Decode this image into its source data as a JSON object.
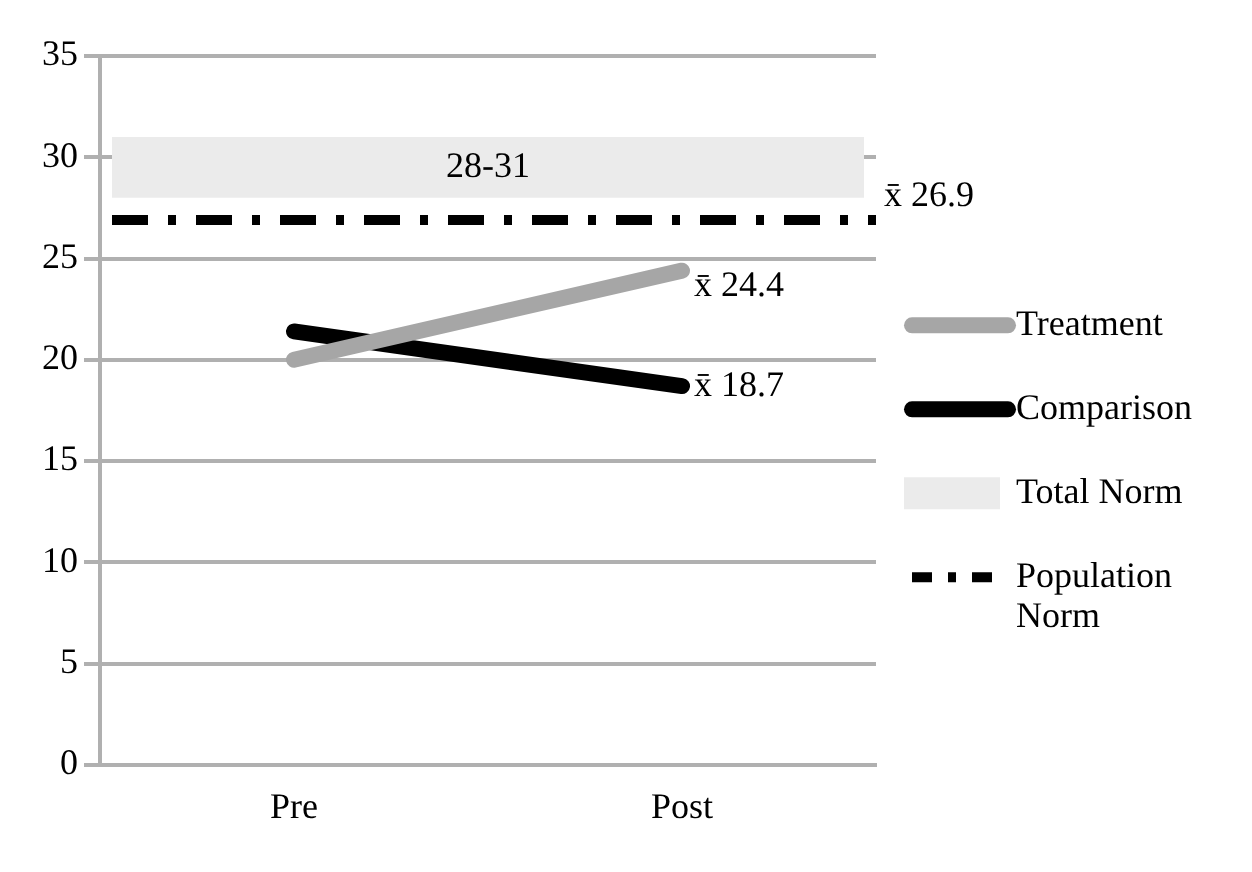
{
  "chart_data": {
    "type": "line",
    "categories": [
      "Pre",
      "Post"
    ],
    "series": [
      {
        "name": "Treatment",
        "color": "#a6a6a6",
        "values": [
          20,
          24.4
        ],
        "value_labels": [
          null,
          "x̄ 24.4"
        ]
      },
      {
        "name": "Comparison",
        "color": "#000000",
        "values": [
          21.4,
          18.7
        ],
        "value_labels": [
          null,
          "x̄ 18.7"
        ]
      }
    ],
    "ylim": [
      0,
      35
    ],
    "yticks": [
      0,
      5,
      10,
      15,
      20,
      25,
      30,
      35
    ],
    "grid": "y",
    "legend": "right",
    "marker": "none",
    "bands": [
      {
        "axis": "y",
        "from": 28,
        "to": 31,
        "label": "Total Norm",
        "color": "#ebebeb"
      }
    ],
    "ref_lines": [
      {
        "axis": "y",
        "value": 26.9,
        "label": "Population Norm",
        "color": "#000000",
        "line_style": "dashed"
      }
    ],
    "annotations": [
      "28-31",
      "x̄ 26.9"
    ]
  }
}
